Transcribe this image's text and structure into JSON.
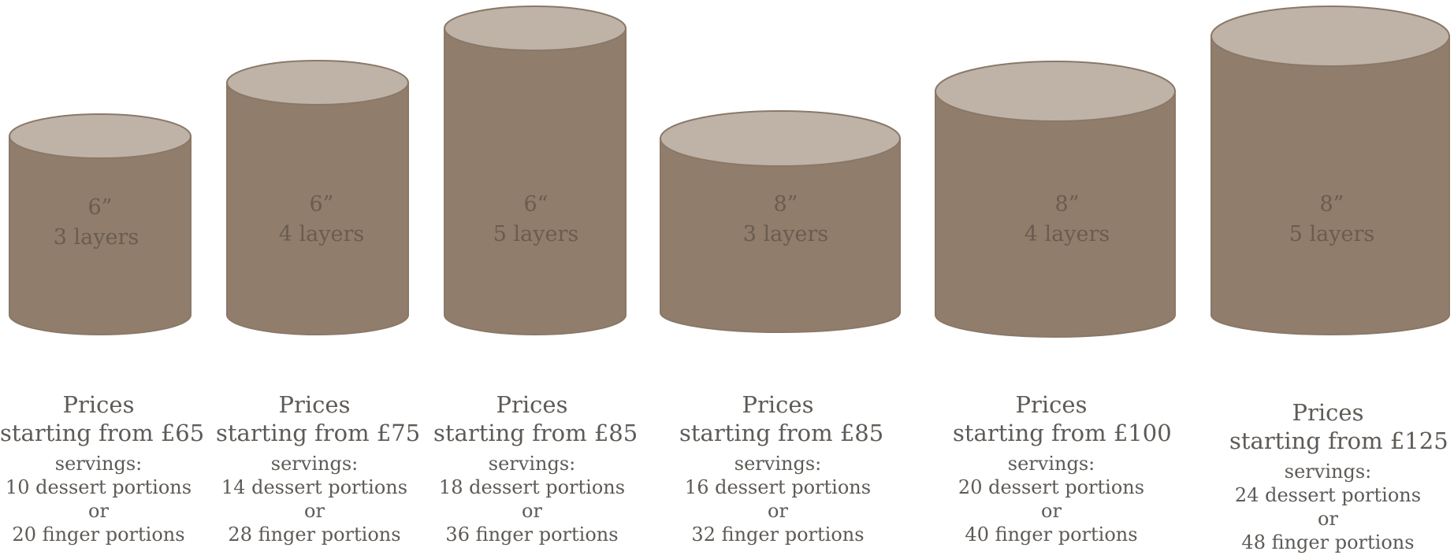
{
  "cakes": [
    {
      "size": "6”",
      "layers": "3 layers",
      "price_title": "Prices",
      "price_text": "starting from £65",
      "servings_label": "servings:",
      "dessert": "10 dessert portions",
      "or": "or",
      "finger": "20 finger portions"
    },
    {
      "size": "6”",
      "layers": "4 layers",
      "price_title": "Prices",
      "price_text": "starting from £75",
      "servings_label": "servings:",
      "dessert": "14 dessert portions",
      "or": "or",
      "finger": "28 finger portions"
    },
    {
      "size": "6“",
      "layers": "5 layers",
      "price_title": "Prices",
      "price_text": "starting from £85",
      "servings_label": "servings:",
      "dessert": "18 dessert portions",
      "or": "or",
      "finger": "36 finger portions"
    },
    {
      "size": "8”",
      "layers": "3 layers",
      "price_title": "Prices",
      "price_text": "starting from £85",
      "servings_label": "servings:",
      "dessert": "16 dessert portions",
      "or": "or",
      "finger": "32 finger portions"
    },
    {
      "size": "8”",
      "layers": "4 layers",
      "price_title": "Prices",
      "price_text": "starting from £100",
      "servings_label": "servings:",
      "dessert": "20 dessert portions",
      "or": "or",
      "finger": "40 finger portions"
    },
    {
      "size": "8”",
      "layers": "5 layers",
      "price_title": "Prices",
      "price_text": "starting from £125",
      "servings_label": "servings:",
      "dessert": "24 dessert portions",
      "or": "or",
      "finger": "48 finger portions"
    }
  ],
  "colors": {
    "body": "#907d6b",
    "top": "#bfb3a8",
    "outline": "#8a7868",
    "text": "#5e5a56"
  }
}
